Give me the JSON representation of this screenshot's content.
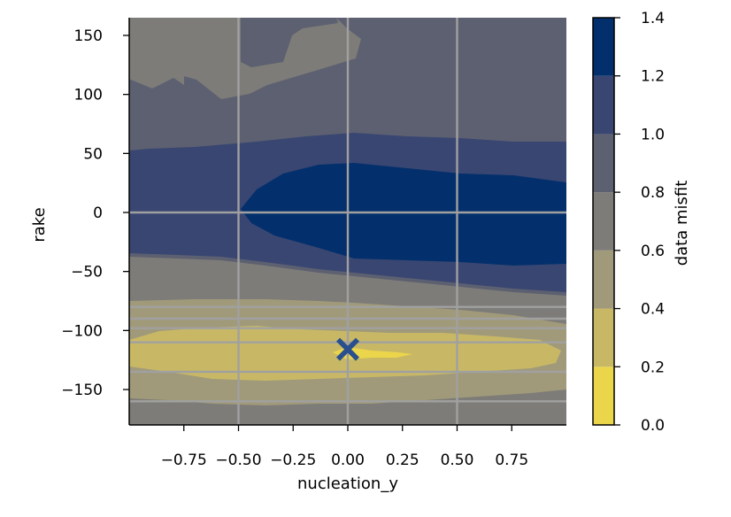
{
  "chart_data": {
    "type": "heatmap",
    "xlabel": "nucleation_y",
    "ylabel": "rake",
    "xlim": [
      -1.0,
      1.0
    ],
    "ylim": [
      -180,
      165
    ],
    "x_ticks": [
      -0.75,
      -0.5,
      -0.25,
      0.0,
      0.25,
      0.5,
      0.75
    ],
    "x_tick_labels": [
      "−0.75",
      "−0.50",
      "−0.25",
      "0.00",
      "0.25",
      "0.50",
      "0.75"
    ],
    "y_ticks": [
      150,
      100,
      50,
      0,
      -50,
      -100,
      -150
    ],
    "y_tick_labels": [
      "150",
      "100",
      "50",
      "0",
      "−50",
      "−100",
      "−150"
    ],
    "grid_x": [
      -0.5,
      0.0,
      0.5
    ],
    "grid_y": [
      0,
      -80,
      -90,
      -98,
      -110,
      -135,
      -160
    ],
    "colorbar": {
      "label": "data misfit",
      "levels": [
        0.0,
        0.2,
        0.4,
        0.6,
        0.8,
        1.0,
        1.2,
        1.4
      ],
      "tick_labels": [
        "0.0",
        "0.2",
        "0.4",
        "0.6",
        "0.8",
        "1.0",
        "1.2",
        "1.4"
      ],
      "colors": [
        "#ebd54a",
        "#c8b866",
        "#a09a7a",
        "#7d7c78",
        "#5c6070",
        "#394672",
        "#03306c"
      ]
    },
    "contour_bands": [
      {
        "level_range": [
          0.6,
          0.8
        ],
        "region": "background",
        "color": "#5c6070"
      },
      {
        "level_range": [
          0.4,
          0.6
        ],
        "region": "upper-left",
        "color": "#7d7c78"
      },
      {
        "level_range": [
          0.8,
          1.0
        ],
        "region": "band y 15..60",
        "color": "#394672"
      },
      {
        "level_range": [
          1.0,
          1.2
        ],
        "region": "core x -0.5..1.0, y -45..40",
        "color": "#03306c"
      },
      {
        "level_range": [
          0.8,
          1.0
        ],
        "region": "band y -70..-15",
        "color": "#394672"
      },
      {
        "level_range": [
          0.4,
          0.6
        ],
        "region": "band y -100..-45",
        "color": "#7d7c78"
      },
      {
        "level_range": [
          0.2,
          0.4
        ],
        "region": "band y -150..-75",
        "color": "#a09a7a"
      },
      {
        "level_range": [
          0.0,
          0.2
        ],
        "region": "band y -135..-100",
        "color": "#c8b866"
      },
      {
        "level_range": [
          0.0,
          0.2
        ],
        "region": "minimum near x 0.0..0.3, y -120",
        "color": "#ebd54a"
      }
    ],
    "marker": {
      "x": 0.0,
      "y": -116,
      "symbol": "X",
      "color": "#2a4f8d"
    }
  }
}
